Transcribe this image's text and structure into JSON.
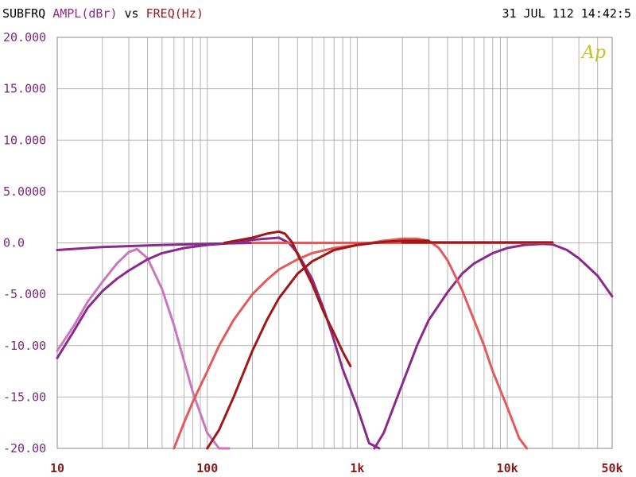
{
  "header": {
    "left_prefix": "SUBFRQ",
    "ylabel": "AMPL(dBr)",
    "vs": "vs",
    "xlabel": "FREQ(Hz)",
    "timestamp": "31 JUL 112 14:42:5"
  },
  "logo": "Ap",
  "colors": {
    "grid": "#b4b4b4",
    "frame": "#888888",
    "ytick": "#7a2a7a",
    "xtick": "#8a1a1a",
    "logo": "#c8c020"
  },
  "chart_data": {
    "type": "line",
    "title": "",
    "xlabel": "FREQ(Hz)",
    "ylabel": "AMPL(dBr)",
    "xscale": "log",
    "xlim": [
      10,
      50000
    ],
    "ylim": [
      -20,
      20
    ],
    "grid": true,
    "y_ticks": [
      {
        "value": 20,
        "label": "20.000"
      },
      {
        "value": 15,
        "label": "15.000"
      },
      {
        "value": 10,
        "label": "10.000"
      },
      {
        "value": 5,
        "label": "5.0000"
      },
      {
        "value": 0,
        "label": "0.0"
      },
      {
        "value": -5,
        "label": "-5.000"
      },
      {
        "value": -10,
        "label": "-10.00"
      },
      {
        "value": -15,
        "label": "-15.00"
      },
      {
        "value": -20,
        "label": "-20.00"
      }
    ],
    "x_ticks": [
      {
        "value": 10,
        "label": "10"
      },
      {
        "value": 100,
        "label": "100"
      },
      {
        "value": 1000,
        "label": "1k"
      },
      {
        "value": 10000,
        "label": "10k"
      },
      {
        "value": 50000,
        "label": "50k"
      }
    ],
    "series": [
      {
        "color": "#c878c0",
        "x": [
          10,
          13,
          16,
          20,
          25,
          30,
          34,
          40,
          50,
          60,
          70,
          80,
          100,
          120,
          140
        ],
        "y": [
          -10.5,
          -8,
          -5.7,
          -3.8,
          -2,
          -0.9,
          -0.6,
          -1.5,
          -4.5,
          -8,
          -11.5,
          -14.5,
          -18.5,
          -20.5,
          -22
        ]
      },
      {
        "color": "#8a2a8a",
        "x": [
          10,
          13,
          16,
          20,
          25,
          30,
          40,
          50,
          70,
          100,
          150,
          200,
          300,
          350,
          400,
          500,
          600,
          700,
          800,
          1000,
          1200,
          1400
        ],
        "y": [
          -11.2,
          -8.5,
          -6.3,
          -4.7,
          -3.5,
          -2.7,
          -1.6,
          -1,
          -0.5,
          -0.2,
          0,
          0.3,
          0.5,
          0,
          -1,
          -3.5,
          -6.5,
          -9.5,
          -12.3,
          -16,
          -19.5,
          -20.5
        ]
      },
      {
        "color": "#8a2a8a",
        "x": [
          10,
          20,
          50,
          100,
          200,
          500,
          1000,
          2000,
          5000
        ],
        "y": [
          -0.7,
          -0.4,
          -0.2,
          -0.1,
          0,
          0,
          0,
          0,
          0
        ]
      },
      {
        "color": "#8a2a8a",
        "x": [
          1300,
          1500,
          2000,
          2500,
          3000,
          4000,
          5000,
          6000,
          8000,
          10000,
          13000,
          17000,
          20000,
          25000,
          30000,
          40000,
          50000
        ],
        "y": [
          -20.2,
          -18.5,
          -13.7,
          -10,
          -7.5,
          -4.8,
          -3,
          -2,
          -1,
          -0.5,
          -0.2,
          -0.1,
          -0.15,
          -0.7,
          -1.5,
          -3.2,
          -5.2
        ]
      },
      {
        "color": "#e35a5a",
        "x": [
          60,
          70,
          80,
          100,
          120,
          150,
          200,
          250,
          300,
          400,
          500,
          700,
          1000,
          1500,
          2000,
          2500,
          3000,
          3500,
          4000,
          5000,
          6000,
          7000,
          8000,
          10000,
          12000,
          13500
        ],
        "y": [
          -20,
          -17.5,
          -15.5,
          -12.5,
          -10,
          -7.5,
          -5,
          -3.6,
          -2.6,
          -1.6,
          -1,
          -0.5,
          -0.2,
          0.2,
          0.4,
          0.4,
          0.2,
          -0.5,
          -1.7,
          -4.6,
          -7.5,
          -10,
          -12.5,
          -16,
          -19,
          -20.2
        ]
      },
      {
        "color": "#e35a5a",
        "x": [
          200,
          500,
          1000,
          2000,
          5000,
          10000,
          20000
        ],
        "y": [
          0,
          0,
          0,
          0,
          0,
          0,
          0
        ]
      },
      {
        "color": "#a01818",
        "x": [
          100,
          120,
          150,
          200,
          250,
          300,
          400,
          500,
          700,
          1000,
          1500,
          2000,
          3000
        ],
        "y": [
          -20,
          -18.2,
          -15,
          -10.5,
          -7.5,
          -5.4,
          -3,
          -1.8,
          -0.7,
          -0.2,
          0.1,
          0.2,
          0.2
        ]
      },
      {
        "color": "#a01818",
        "x": [
          130,
          200,
          250,
          300,
          330,
          370,
          400,
          500,
          600,
          700,
          800,
          900
        ],
        "y": [
          0,
          0.5,
          0.9,
          1.1,
          0.9,
          0,
          -1.1,
          -4,
          -6.8,
          -8.8,
          -10.6,
          -12
        ]
      },
      {
        "color": "#a01818",
        "x": [
          2000,
          5000,
          10000,
          20000
        ],
        "y": [
          0.05,
          0.05,
          0.05,
          0.05
        ]
      }
    ]
  }
}
